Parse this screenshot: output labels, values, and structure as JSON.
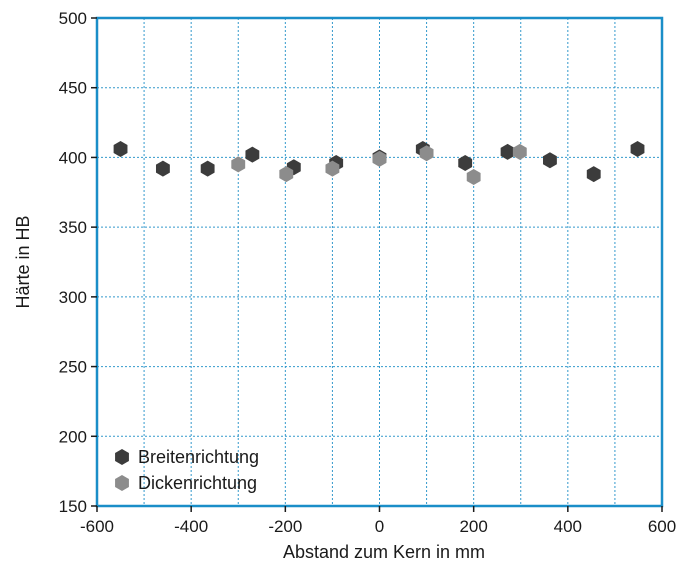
{
  "chart_data": {
    "type": "scatter",
    "xlabel": "Abstand zum Kern in mm",
    "ylabel": "Härte in HB",
    "xlim": [
      -600,
      600
    ],
    "ylim": [
      150,
      500
    ],
    "xticks": [
      -600,
      -400,
      -200,
      0,
      200,
      400,
      600
    ],
    "yticks": [
      150,
      200,
      250,
      300,
      350,
      400,
      450,
      500
    ],
    "grid": true,
    "legend_position": "bottom-left",
    "colors": {
      "frame": "#1a8ec8",
      "grid": "#3399cc"
    },
    "series": [
      {
        "name": "Breitenrichtung",
        "color": "#3c3c3c",
        "points": [
          {
            "x": -550,
            "y": 406
          },
          {
            "x": -460,
            "y": 392
          },
          {
            "x": -365,
            "y": 392
          },
          {
            "x": -270,
            "y": 402
          },
          {
            "x": -182,
            "y": 393
          },
          {
            "x": -92,
            "y": 396
          },
          {
            "x": 0,
            "y": 400
          },
          {
            "x": 92,
            "y": 406
          },
          {
            "x": 182,
            "y": 396
          },
          {
            "x": 272,
            "y": 404
          },
          {
            "x": 362,
            "y": 398
          },
          {
            "x": 455,
            "y": 388
          },
          {
            "x": 548,
            "y": 406
          }
        ]
      },
      {
        "name": "Dickenrichtung",
        "color": "#8c8c8c",
        "points": [
          {
            "x": -300,
            "y": 395
          },
          {
            "x": -198,
            "y": 388
          },
          {
            "x": -100,
            "y": 392
          },
          {
            "x": 0,
            "y": 399
          },
          {
            "x": 100,
            "y": 403
          },
          {
            "x": 200,
            "y": 386
          },
          {
            "x": 298,
            "y": 404
          }
        ]
      }
    ]
  }
}
